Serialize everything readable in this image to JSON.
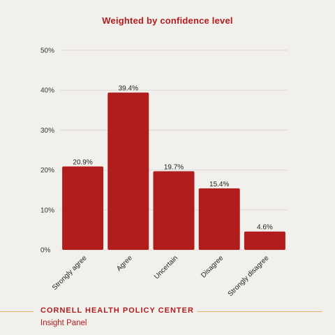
{
  "chart_data": {
    "type": "bar",
    "title": "Weighted by confidence level",
    "categories": [
      "Strongly agree",
      "Agree",
      "Uncertain",
      "Disagree",
      "Strongly disagree"
    ],
    "values": [
      20.9,
      39.4,
      19.7,
      15.4,
      4.6
    ],
    "value_labels": [
      "20.9%",
      "39.4%",
      "19.7%",
      "15.4%",
      "4.6%"
    ],
    "y_ticks": [
      0,
      10,
      20,
      30,
      40,
      50
    ],
    "y_tick_labels": [
      "0%",
      "10%",
      "20%",
      "30%",
      "40%",
      "50%"
    ],
    "ylim": [
      0,
      50
    ],
    "grid": true,
    "bar_color": "#b11c1c"
  },
  "footer": {
    "org": "CORNELL HEALTH POLICY CENTER",
    "subtitle": "Insight Panel"
  },
  "colors": {
    "accent": "#b11c1c",
    "rule": "#e8b06a",
    "background": "#f2f0ed"
  }
}
